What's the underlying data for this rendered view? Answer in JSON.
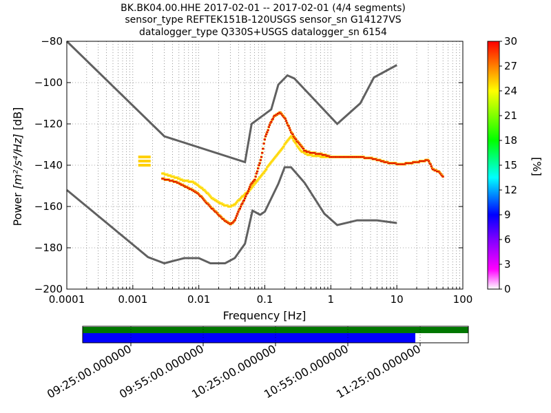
{
  "title": {
    "line1": "BK.BK04.00.HHE   2017-02-01 -- 2017-02-01  (4/4 segments)",
    "line2": "sensor_type REFTEK151B-120USGS sensor_sn G14127VS",
    "line3": "datalogger_type Q330S+USGS datalogger_sn 6154"
  },
  "chart_data": [
    {
      "type": "ppsd-heatmap",
      "xlabel": "Frequency [Hz]",
      "ylabel_prefix": "Power ",
      "ylabel_math": "[m²/s⁴/Hz]",
      "ylabel_suffix": " [dB]",
      "x_scale": "log",
      "xlim": [
        0.0001,
        100
      ],
      "ylim": [
        -200,
        -80
      ],
      "x_ticks": [
        0.0001,
        0.001,
        0.01,
        0.1,
        1,
        10,
        100
      ],
      "x_tick_labels": [
        "0.0001",
        "0.001",
        "0.01",
        "0.1",
        "1",
        "10",
        "100"
      ],
      "y_ticks": [
        -200,
        -180,
        -160,
        -140,
        -120,
        -100,
        -80
      ],
      "y_tick_labels": [
        "−200",
        "−180",
        "−160",
        "−140",
        "−120",
        "−100",
        "−80"
      ],
      "colorbar": {
        "label": "[%]",
        "ticks": [
          0,
          3,
          6,
          9,
          12,
          15,
          18,
          21,
          24,
          27,
          30
        ],
        "tick_labels": [
          "0",
          "3",
          "6",
          "9",
          "12",
          "15",
          "18",
          "21",
          "24",
          "27",
          "30"
        ],
        "range": [
          0,
          30
        ],
        "colormap": [
          "#ffffff",
          "#ff00ff",
          "#0000ff",
          "#00ffff",
          "#00ff00",
          "#ffff00",
          "#ff0000"
        ]
      },
      "high_noise_model": [
        [
          0.0001,
          -80
        ],
        [
          0.003,
          -126
        ],
        [
          0.05,
          -138.5
        ],
        [
          0.063,
          -120
        ],
        [
          0.125,
          -113
        ],
        [
          0.16,
          -101
        ],
        [
          0.22,
          -96.5
        ],
        [
          0.28,
          -98
        ],
        [
          1.25,
          -120
        ],
        [
          2.8,
          -110
        ],
        [
          4.5,
          -97.5
        ],
        [
          10,
          -91.5
        ]
      ],
      "low_noise_model": [
        [
          0.0001,
          -152
        ],
        [
          0.0017,
          -184.5
        ],
        [
          0.003,
          -187.5
        ],
        [
          0.006,
          -185
        ],
        [
          0.01,
          -185
        ],
        [
          0.015,
          -187.5
        ],
        [
          0.025,
          -187.5
        ],
        [
          0.035,
          -185
        ],
        [
          0.05,
          -178
        ],
        [
          0.065,
          -162
        ],
        [
          0.085,
          -164
        ],
        [
          0.1,
          -162.5
        ],
        [
          0.16,
          -149
        ],
        [
          0.2,
          -141
        ],
        [
          0.25,
          -141
        ],
        [
          0.4,
          -148.5
        ],
        [
          0.8,
          -163.5
        ],
        [
          1.25,
          -169
        ],
        [
          2.5,
          -166.7
        ],
        [
          5,
          -166.7
        ],
        [
          10,
          -168
        ]
      ],
      "dominant_psd_curve": [
        [
          0.0028,
          -146.5
        ],
        [
          0.0045,
          -148
        ],
        [
          0.006,
          -150
        ],
        [
          0.008,
          -152
        ],
        [
          0.01,
          -154
        ],
        [
          0.013,
          -158
        ],
        [
          0.016,
          -161
        ],
        [
          0.02,
          -164
        ],
        [
          0.025,
          -167
        ],
        [
          0.03,
          -168.5
        ],
        [
          0.035,
          -167
        ],
        [
          0.04,
          -162
        ],
        [
          0.05,
          -156
        ],
        [
          0.06,
          -150
        ],
        [
          0.07,
          -147
        ],
        [
          0.08,
          -141
        ],
        [
          0.09,
          -135
        ],
        [
          0.1,
          -127
        ],
        [
          0.12,
          -120
        ],
        [
          0.14,
          -116
        ],
        [
          0.17,
          -114.5
        ],
        [
          0.2,
          -117
        ],
        [
          0.25,
          -124
        ],
        [
          0.3,
          -128
        ],
        [
          0.35,
          -130.5
        ],
        [
          0.4,
          -133
        ],
        [
          0.5,
          -134
        ],
        [
          0.7,
          -134.5
        ],
        [
          1,
          -136
        ],
        [
          1.5,
          -136
        ],
        [
          2.5,
          -136
        ],
        [
          4,
          -136.5
        ],
        [
          6,
          -138
        ],
        [
          8,
          -139
        ],
        [
          12,
          -139.5
        ],
        [
          20,
          -138.5
        ],
        [
          30,
          -137.5
        ],
        [
          35,
          -142
        ],
        [
          45,
          -143.5
        ],
        [
          50,
          -145.5
        ]
      ],
      "secondary_psd_curve": [
        [
          0.0015,
          -136
        ],
        [
          0.0015,
          -138
        ],
        [
          0.0015,
          -140
        ],
        [
          0.0028,
          -144
        ],
        [
          0.0045,
          -146
        ],
        [
          0.006,
          -147.5
        ],
        [
          0.008,
          -148
        ],
        [
          0.01,
          -150
        ],
        [
          0.013,
          -153
        ],
        [
          0.016,
          -156
        ],
        [
          0.02,
          -158
        ],
        [
          0.025,
          -159.5
        ],
        [
          0.03,
          -160
        ],
        [
          0.035,
          -159
        ],
        [
          0.04,
          -157
        ],
        [
          0.05,
          -154
        ],
        [
          0.06,
          -152
        ],
        [
          0.25,
          -126
        ],
        [
          0.3,
          -130
        ],
        [
          0.35,
          -133
        ],
        [
          0.45,
          -135
        ],
        [
          0.6,
          -135.5
        ],
        [
          0.8,
          -136
        ],
        [
          1.2,
          -136
        ]
      ]
    },
    {
      "type": "data-coverage",
      "time_labels": [
        "09:25:00.000000",
        "09:55:00.000000",
        "10:25:00.000000",
        "10:55:00.000000",
        "11:25:00.000000"
      ],
      "time_label_minutes": [
        0,
        30,
        60,
        90,
        120
      ],
      "time_range_minutes": [
        -20,
        140
      ],
      "green_coverage": [
        -20,
        140
      ],
      "blue_coverage": [
        -20,
        118
      ]
    }
  ]
}
